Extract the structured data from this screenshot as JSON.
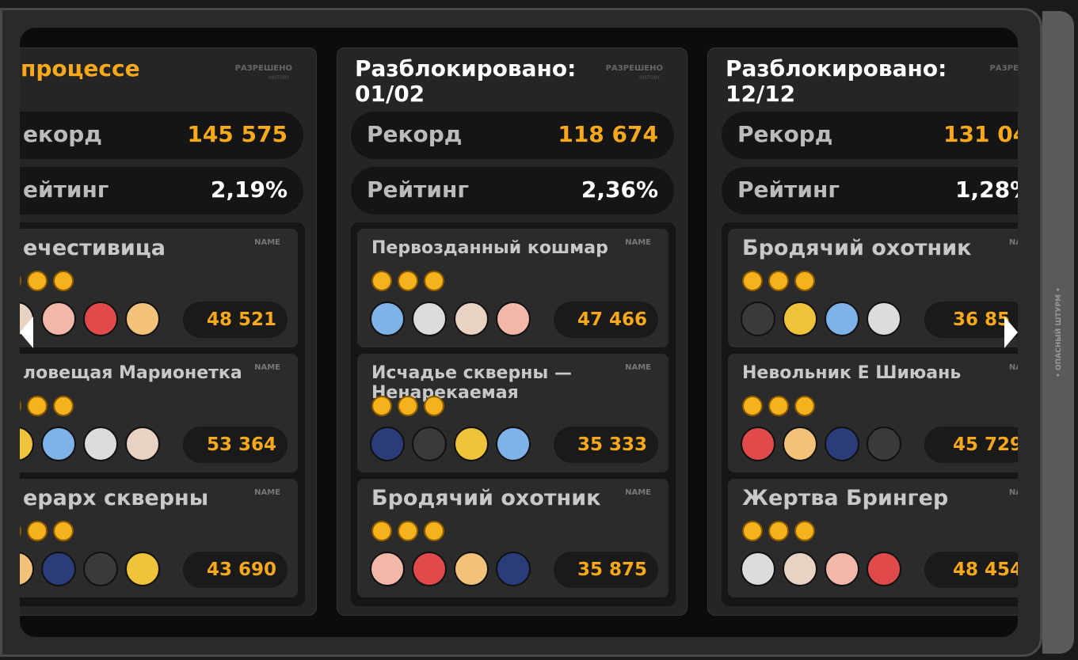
{
  "side_label": "• ОПАСНЫЙ ШТУРМ •",
  "columns": [
    {
      "title": "процессе",
      "status": "РАЗРЕШЕНО",
      "status_sub": "HISTORY",
      "record_label": "екорд",
      "record": "145 575",
      "rating_label": "ейтинг",
      "rating": "2,19%",
      "bosses": [
        {
          "name": "ечестивица",
          "tag": "NAME",
          "score": "48 521"
        },
        {
          "name": "ловещая Марионетка",
          "tag": "NAME",
          "score": "53 364"
        },
        {
          "name": "ерарх скверны",
          "tag": "NAME",
          "score": "43 690"
        }
      ]
    },
    {
      "title": "Разблокировано: 01/02",
      "status": "РАЗРЕШЕНО",
      "status_sub": "HISTORY",
      "record_label": "Рекорд",
      "record": "118 674",
      "rating_label": "Рейтинг",
      "rating": "2,36%",
      "bosses": [
        {
          "name": "Первозданный кошмар",
          "tag": "NAME",
          "score": "47 466"
        },
        {
          "name": "Исчадье скверны — Ненарекаемая",
          "tag": "NAME",
          "score": "35 333"
        },
        {
          "name": "Бродячий охотник",
          "tag": "NAME",
          "score": "35 875"
        }
      ]
    },
    {
      "title": "Разблокировано: 12/12",
      "status": "РАЗРЕШЕ",
      "record_label": "Рекорд",
      "record": "131 04",
      "rating_label": "Рейтинг",
      "rating": "1,28%",
      "bosses": [
        {
          "name": "Бродячий охотник",
          "tag": "NA",
          "score": "36 85"
        },
        {
          "name": "Невольник Е Шиюань",
          "tag": "NA",
          "score": "45 729"
        },
        {
          "name": "Жертва Брингер",
          "tag": "NA",
          "score": "48 454"
        }
      ]
    }
  ]
}
